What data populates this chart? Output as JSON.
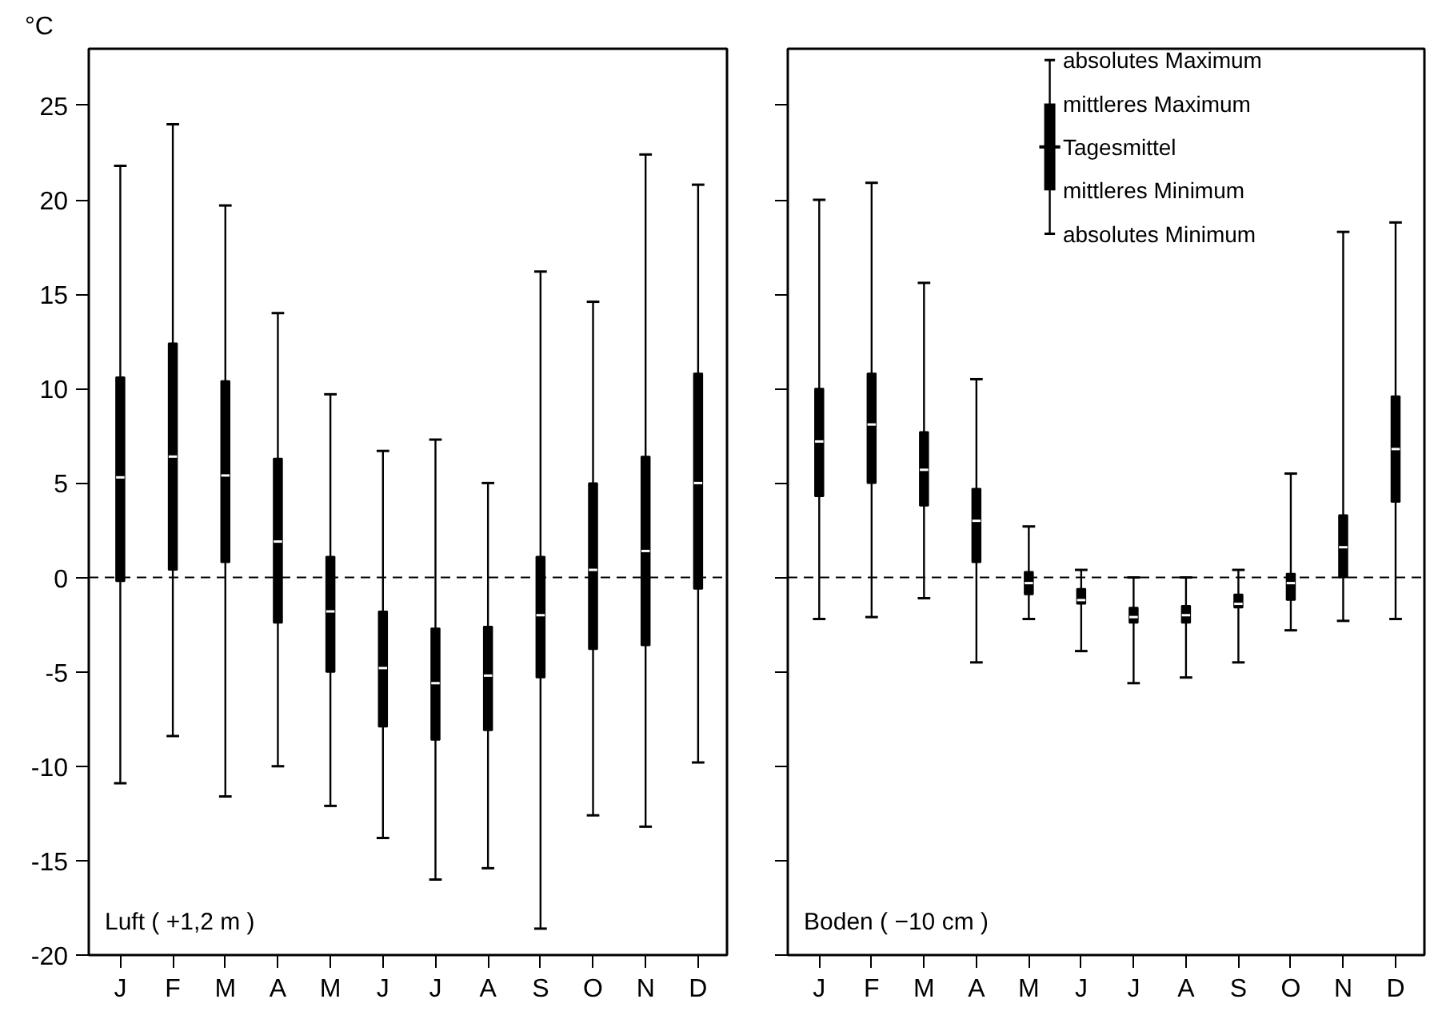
{
  "chart_data": [
    {
      "type": "box",
      "title": "Luft ( +1,2 m )",
      "ylabel": "°C",
      "color": "#000000",
      "categories": [
        "J",
        "F",
        "M",
        "A",
        "M",
        "J",
        "J",
        "A",
        "S",
        "O",
        "N",
        "D"
      ],
      "boxes": [
        {
          "low": -10.9,
          "q1": -0.2,
          "median": 5.3,
          "q3": 10.6,
          "high": 21.8
        },
        {
          "low": -8.4,
          "q1": 0.4,
          "median": 6.4,
          "q3": 12.4,
          "high": 24.0
        },
        {
          "low": -11.6,
          "q1": 0.8,
          "median": 5.4,
          "q3": 10.4,
          "high": 19.7
        },
        {
          "low": -10.0,
          "q1": -2.4,
          "median": 1.9,
          "q3": 6.3,
          "high": 14.0
        },
        {
          "low": -12.1,
          "q1": -5.0,
          "median": -1.8,
          "q3": 1.1,
          "high": 9.7
        },
        {
          "low": -13.8,
          "q1": -7.9,
          "median": -4.8,
          "q3": -1.8,
          "high": 6.7
        },
        {
          "low": -16.0,
          "q1": -8.6,
          "median": -5.6,
          "q3": -2.7,
          "high": 7.3
        },
        {
          "low": -15.4,
          "q1": -8.1,
          "median": -5.2,
          "q3": -2.6,
          "high": 5.0
        },
        {
          "low": -18.6,
          "q1": -5.3,
          "median": -2.0,
          "q3": 1.1,
          "high": 16.2
        },
        {
          "low": -12.6,
          "q1": -3.8,
          "median": 0.4,
          "q3": 5.0,
          "high": 14.6
        },
        {
          "low": -13.2,
          "q1": -3.6,
          "median": 1.4,
          "q3": 6.4,
          "high": 22.4
        },
        {
          "low": -9.8,
          "q1": -0.6,
          "median": 5.0,
          "q3": 10.8,
          "high": 20.8
        }
      ],
      "ylim": [
        -20,
        28
      ],
      "yticks": [
        -20,
        -15,
        -10,
        -5,
        0,
        5,
        10,
        15,
        20,
        25
      ],
      "grid": false,
      "ref_lines": [
        {
          "axis": "y",
          "value": 0,
          "line_style": "dashed"
        }
      ]
    },
    {
      "type": "box",
      "title": "Boden ( −10 cm )",
      "color": "#000000",
      "categories": [
        "J",
        "F",
        "M",
        "A",
        "M",
        "J",
        "J",
        "A",
        "S",
        "O",
        "N",
        "D"
      ],
      "boxes": [
        {
          "low": -2.2,
          "q1": 4.3,
          "median": 7.2,
          "q3": 10.0,
          "high": 20.0
        },
        {
          "low": -2.1,
          "q1": 5.0,
          "median": 8.1,
          "q3": 10.8,
          "high": 20.9
        },
        {
          "low": -1.1,
          "q1": 3.8,
          "median": 5.7,
          "q3": 7.7,
          "high": 15.6
        },
        {
          "low": -4.5,
          "q1": 0.8,
          "median": 3.0,
          "q3": 4.7,
          "high": 10.5
        },
        {
          "low": -2.2,
          "q1": -0.9,
          "median": -0.3,
          "q3": 0.3,
          "high": 2.7
        },
        {
          "low": -3.9,
          "q1": -1.4,
          "median": -1.2,
          "q3": -0.6,
          "high": 0.4
        },
        {
          "low": -5.6,
          "q1": -2.4,
          "median": -2.1,
          "q3": -1.6,
          "high": 0.0
        },
        {
          "low": -5.3,
          "q1": -2.4,
          "median": -2.0,
          "q3": -1.5,
          "high": 0.0
        },
        {
          "low": -4.5,
          "q1": -1.6,
          "median": -1.4,
          "q3": -0.9,
          "high": 0.4
        },
        {
          "low": -2.8,
          "q1": -1.2,
          "median": -0.3,
          "q3": 0.2,
          "high": 5.5
        },
        {
          "low": -2.3,
          "q1": 0.0,
          "median": 1.6,
          "q3": 3.3,
          "high": 18.3
        },
        {
          "low": -2.2,
          "q1": 4.0,
          "median": 6.8,
          "q3": 9.6,
          "high": 18.8
        }
      ],
      "ylim": [
        -20,
        28
      ],
      "yticks": [
        -20,
        -15,
        -10,
        -5,
        0,
        5,
        10,
        15,
        20,
        25
      ],
      "grid": false,
      "tick_labels": "x",
      "ref_lines": [
        {
          "axis": "y",
          "value": 0,
          "line_style": "dashed"
        }
      ],
      "annotations": [
        "absolutes Maximum",
        "mittleres Maximum",
        "Tagesmittel",
        "mittleres Minimum",
        "absolutes Minimum"
      ]
    }
  ]
}
